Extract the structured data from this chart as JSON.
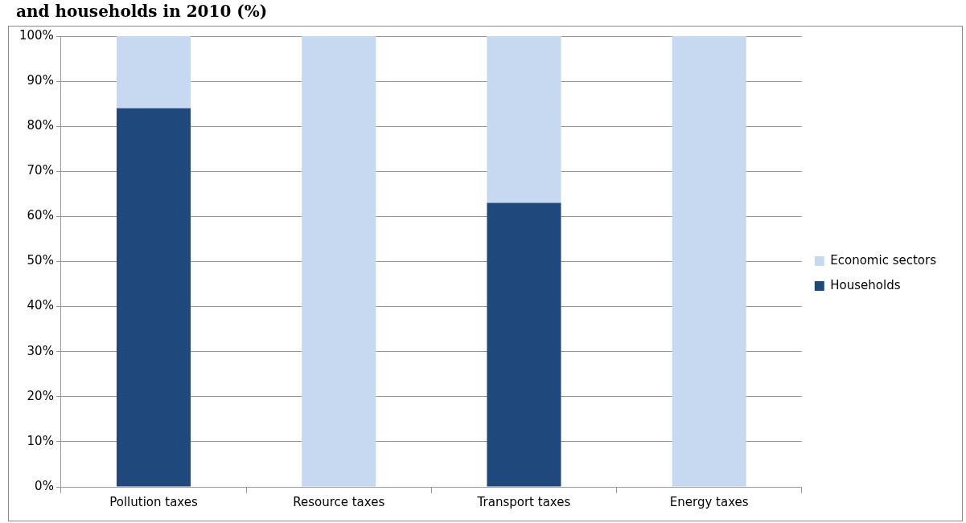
{
  "chart_data": {
    "type": "bar",
    "title": "and households in 2010 (%)",
    "categories": [
      "Pollution taxes",
      "Resource taxes",
      "Transport taxes",
      "Energy taxes"
    ],
    "stacked": true,
    "series": [
      {
        "name": "Households",
        "color": "#1f497d",
        "values": [
          84,
          0,
          63,
          0
        ]
      },
      {
        "name": "Economic sectors",
        "color": "#c6d9f1",
        "values": [
          16,
          100,
          37,
          100
        ]
      }
    ],
    "ylim": [
      0,
      100
    ],
    "yticks": [
      {
        "value": 0,
        "label": "0%"
      },
      {
        "value": 10,
        "label": "10%"
      },
      {
        "value": 20,
        "label": "20%"
      },
      {
        "value": 30,
        "label": "30%"
      },
      {
        "value": 40,
        "label": "40%"
      },
      {
        "value": 50,
        "label": "50%"
      },
      {
        "value": 60,
        "label": "60%"
      },
      {
        "value": 70,
        "label": "70%"
      },
      {
        "value": 80,
        "label": "80%"
      },
      {
        "value": 90,
        "label": "90%"
      },
      {
        "value": 100,
        "label": "100%"
      }
    ],
    "grid": "y",
    "legend": "right"
  }
}
